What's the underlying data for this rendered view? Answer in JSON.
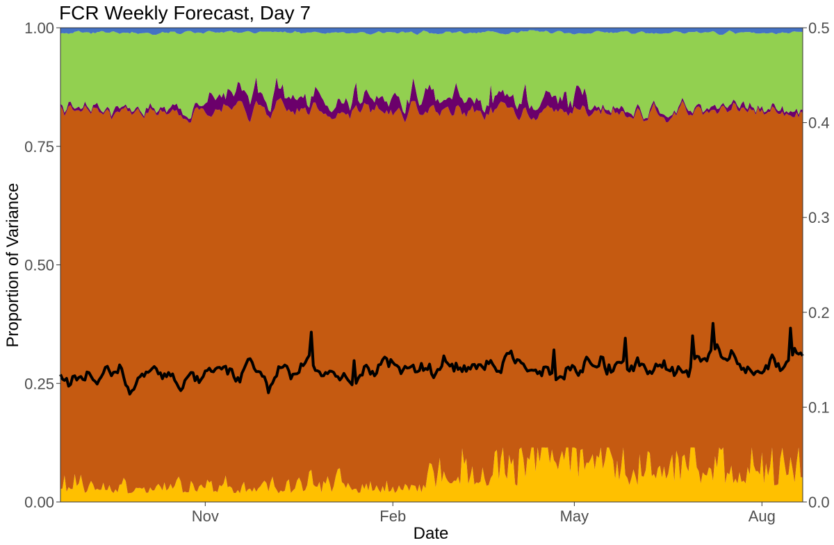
{
  "chart_data": {
    "type": "area",
    "title": "FCR Weekly Forecast, Day 7",
    "xlabel": "Date",
    "ylabel": "Proportion of Variance",
    "y2label": "",
    "ylim": [
      0,
      1
    ],
    "y2lim": [
      0,
      0.5
    ],
    "yticks": [
      "0.00",
      "0.25",
      "0.50",
      "0.75",
      "1.00"
    ],
    "y2ticks": [
      "0.0",
      "0.1",
      "0.2",
      "0.3",
      "0.4",
      "0.5"
    ],
    "xticks": [
      {
        "label": "Nov",
        "index": 71
      },
      {
        "label": "Feb",
        "index": 163
      },
      {
        "label": "May",
        "index": 252
      },
      {
        "label": "Aug",
        "index": 344
      }
    ],
    "n_days": 365,
    "grid": false,
    "legend": "none",
    "stack_series": [
      {
        "color": "#FFC000",
        "shape": "lower band, mean 0.02 rising to 0.05 after Feb, peaks near 0.11 in May"
      },
      {
        "color": "#C55A11",
        "shape": "upper edge about 0.81 to 0.84"
      },
      {
        "color": "#6B006B",
        "shape": "thin band, up to 0.05 from Nov to May"
      },
      {
        "color": "#92D050",
        "shape": "upper edge about 0.99"
      },
      {
        "color": "#4472C4",
        "shape": "remainder to 1.00"
      }
    ],
    "line_series": {
      "color": "#000000",
      "axis": "right",
      "shape": "about 0.13 rising to 0.15, peaks near 0.18"
    }
  }
}
